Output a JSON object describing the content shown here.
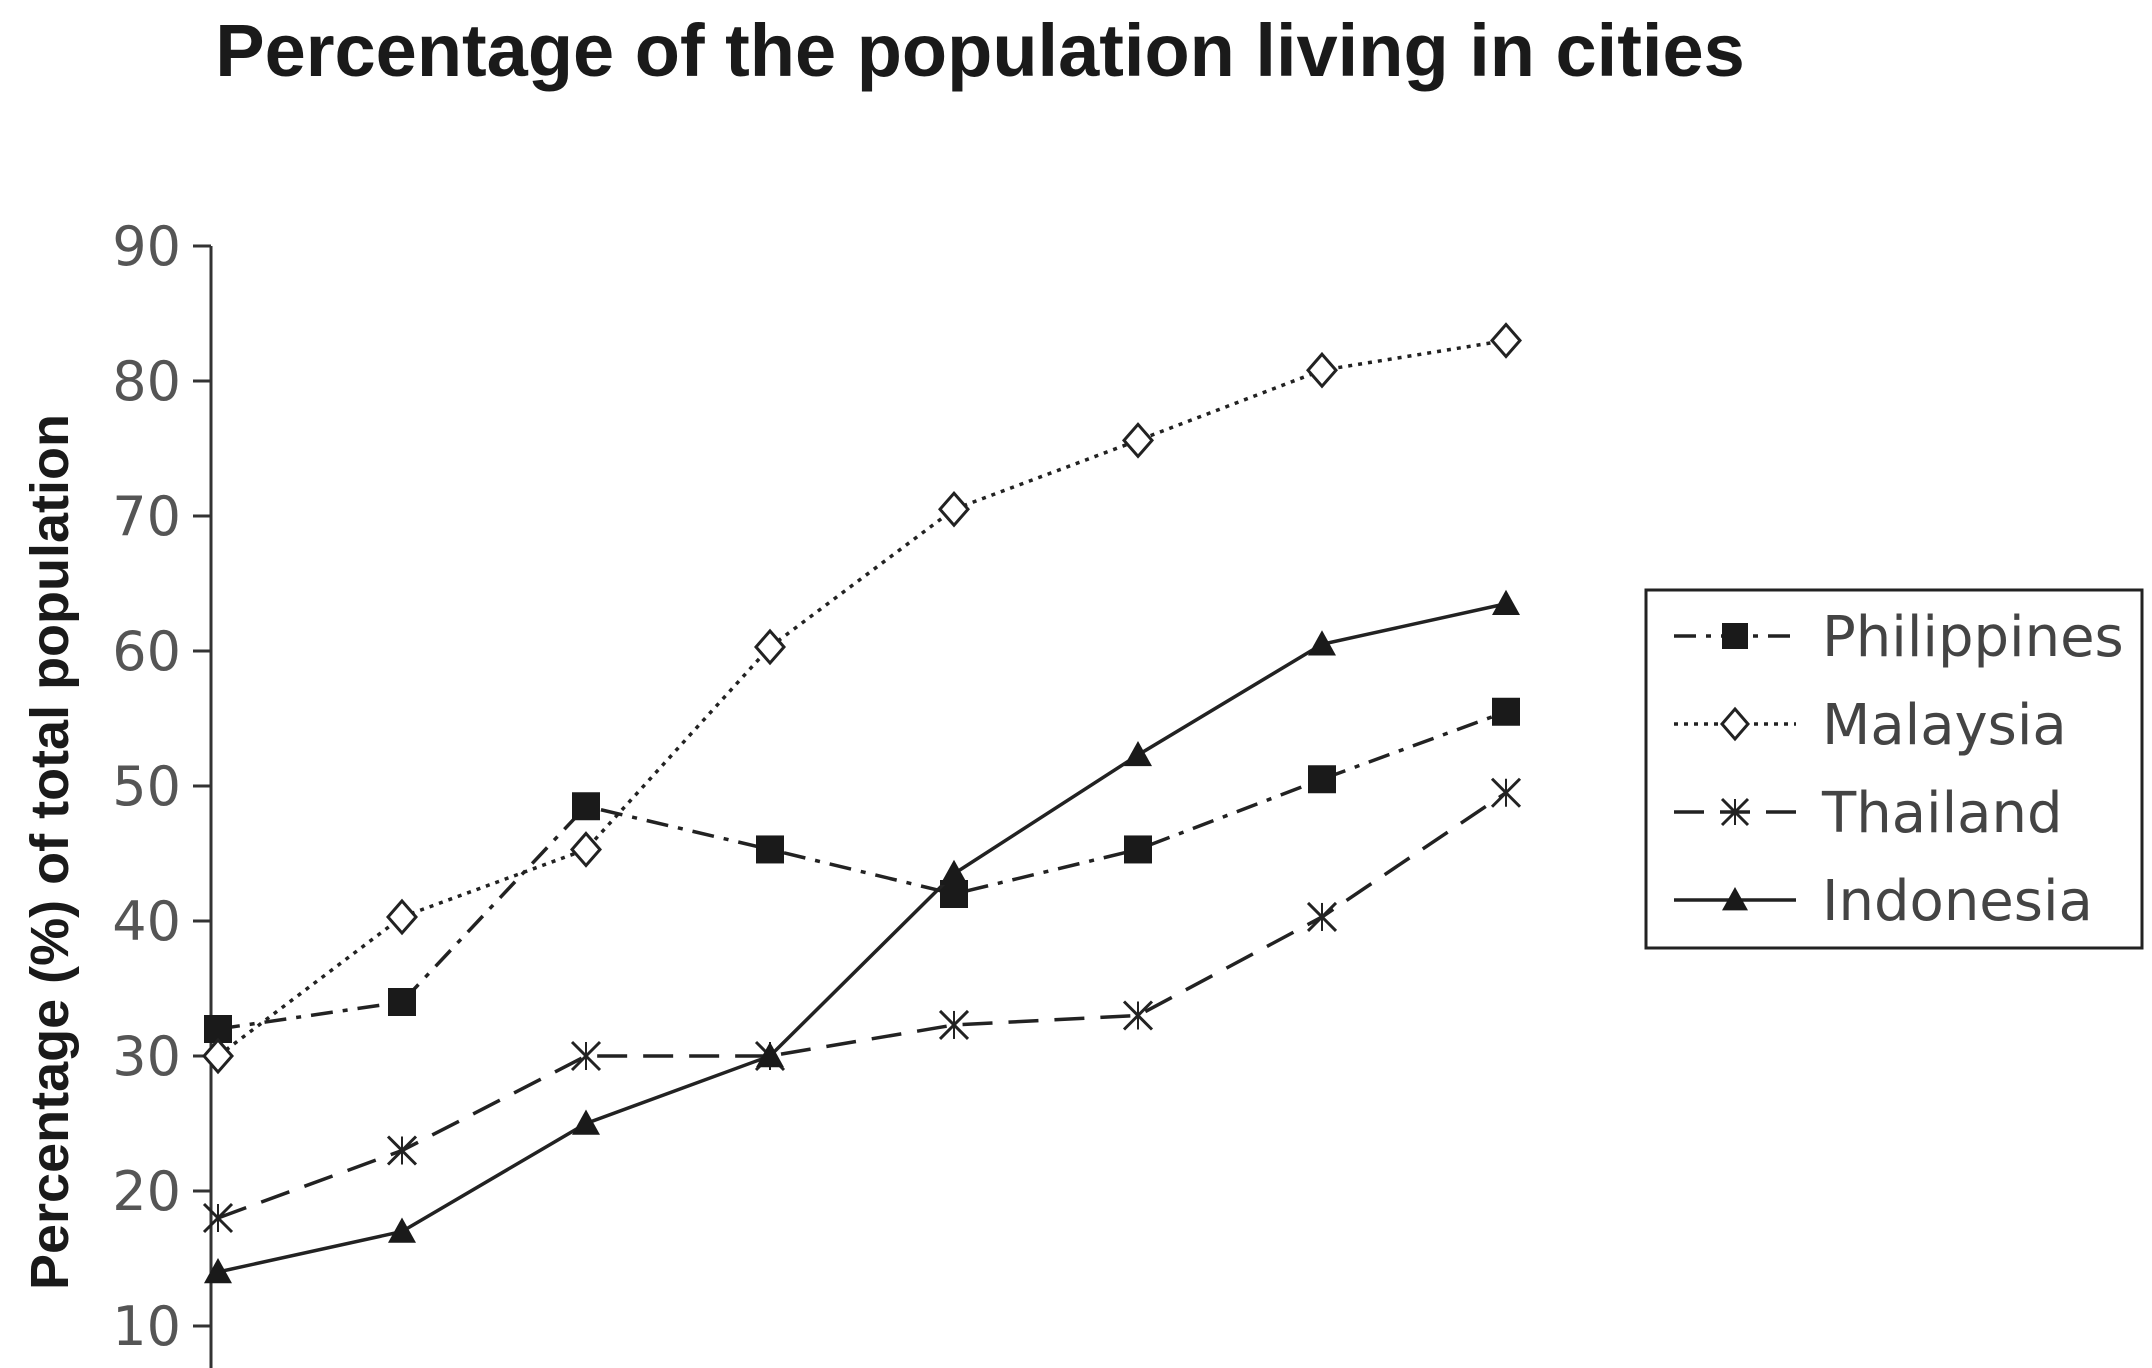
{
  "chart_data": {
    "type": "line",
    "title": "Percentage of the population living in cities",
    "xlabel": "",
    "ylabel": "Percentage (%) of total population",
    "ylim": [
      10,
      90
    ],
    "yticks": [
      10,
      20,
      30,
      40,
      50,
      60,
      70,
      80,
      90
    ],
    "x": [
      1,
      2,
      3,
      4,
      5,
      6,
      7,
      8
    ],
    "grid": false,
    "legend_position": "right",
    "series": [
      {
        "name": "Philippines",
        "marker": "filled-square",
        "line_style": "dash-dot",
        "values": [
          32,
          34,
          48.5,
          45.3,
          42,
          45.3,
          50.5,
          55.5
        ]
      },
      {
        "name": "Malaysia",
        "marker": "open-diamond",
        "line_style": "dotted",
        "values": [
          30,
          40.3,
          45.3,
          60.3,
          70.5,
          75.6,
          80.8,
          83
        ]
      },
      {
        "name": "Thailand",
        "marker": "x-cross",
        "line_style": "dashed",
        "values": [
          18,
          23,
          30,
          30,
          32.3,
          33,
          40.3,
          49.5
        ]
      },
      {
        "name": "Indonesia",
        "marker": "filled-triangle",
        "line_style": "solid",
        "values": [
          14,
          17,
          25,
          30,
          43.5,
          52.3,
          60.5,
          63.5
        ]
      }
    ]
  }
}
